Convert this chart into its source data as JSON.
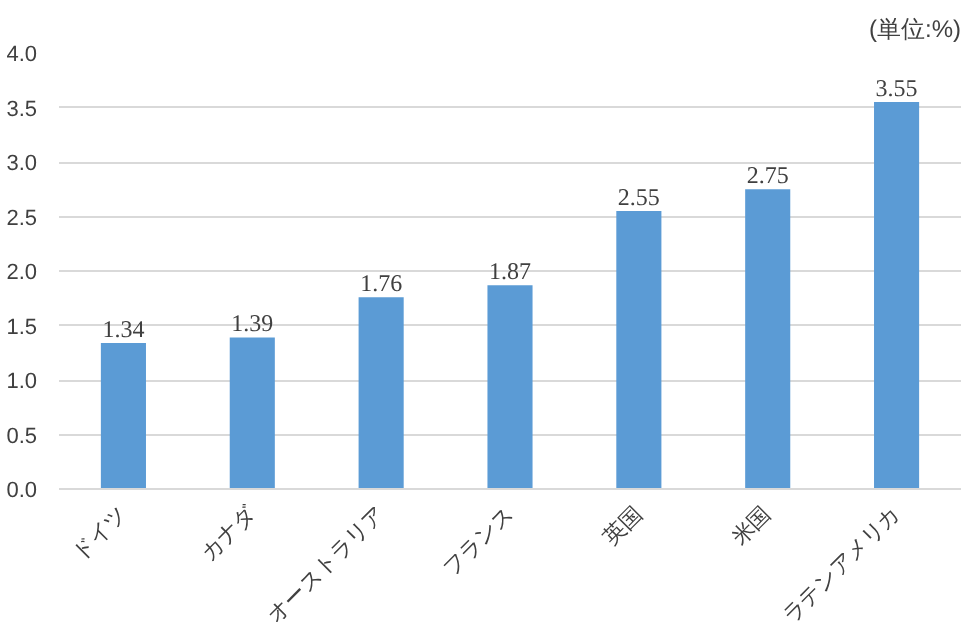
{
  "chart_data": {
    "type": "bar",
    "categories": [
      "ドイツ",
      "カナダ",
      "オーストラリア",
      "フランス",
      "英国",
      "米国",
      "ラテンアメリカ"
    ],
    "values": [
      1.34,
      1.39,
      1.76,
      1.87,
      2.55,
      2.75,
      3.55
    ],
    "color": "#5b9bd5",
    "data_labels": true,
    "ylim": [
      0,
      4
    ],
    "yticks": [
      {
        "value": 0,
        "label": "0.0"
      },
      {
        "value": 0.5,
        "label": "0.5"
      },
      {
        "value": 1,
        "label": "1.0"
      },
      {
        "value": 1.5,
        "label": "1.5"
      },
      {
        "value": 2,
        "label": "2.0"
      },
      {
        "value": 2.5,
        "label": "2.5"
      },
      {
        "value": 3,
        "label": "3.0"
      },
      {
        "value": 3.5,
        "label": "3.5"
      },
      {
        "value": 4,
        "label": "4.0"
      }
    ],
    "grid": "y",
    "annotations": [
      "(単位:%)"
    ]
  }
}
